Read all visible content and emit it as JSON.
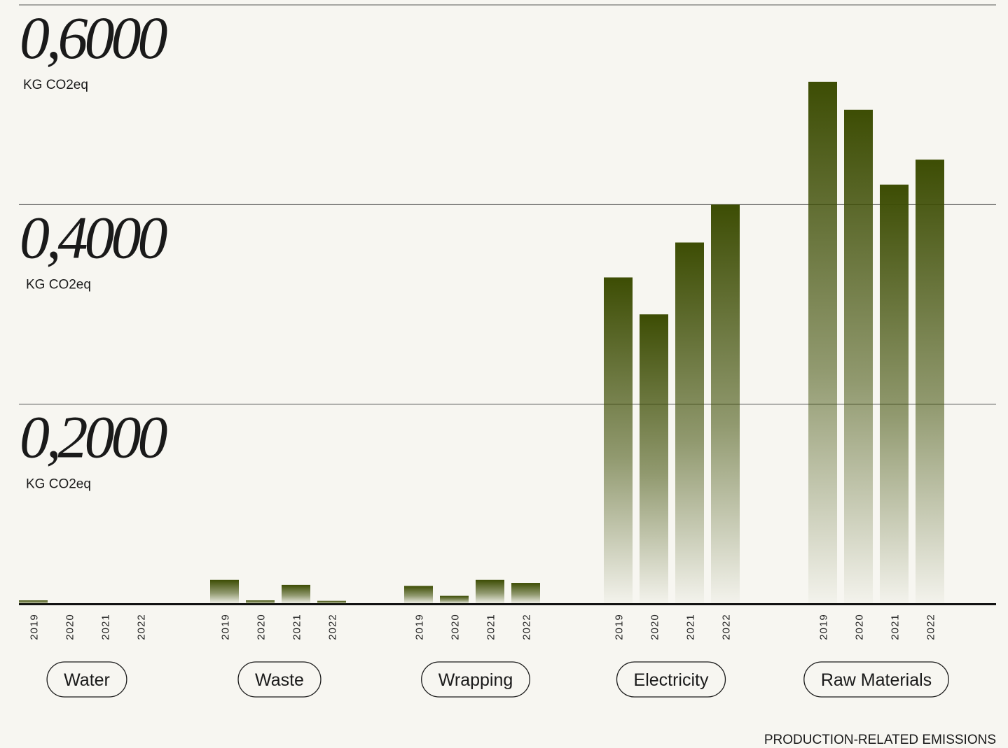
{
  "chart_data": {
    "type": "bar",
    "title": "PRODUCTION-RELATED EMISSIONS",
    "unit": "KG CO2eq",
    "categories": [
      "2019",
      "2020",
      "2021",
      "2022"
    ],
    "series": [
      {
        "name": "Water",
        "color": "#3d4d04",
        "values": [
          0.0035,
          0,
          0,
          0
        ]
      },
      {
        "name": "Waste",
        "color": "#3d4d04",
        "values": [
          0.024,
          0.0035,
          0.019,
          0.003
        ]
      },
      {
        "name": "Wrapping",
        "color": "#3d4d04",
        "values": [
          0.018,
          0.008,
          0.024,
          0.021
        ]
      },
      {
        "name": "Electricity",
        "color": "#3d4d04",
        "values": [
          0.327,
          0.29,
          0.362,
          0.4
        ]
      },
      {
        "name": "Raw Materials",
        "color": "#3d4d04",
        "values": [
          0.523,
          0.495,
          0.42,
          0.445
        ]
      }
    ],
    "ylim": [
      0,
      0.6
    ],
    "yticks": [
      {
        "value": 0.2,
        "label": "0,2000"
      },
      {
        "value": 0.4,
        "label": "0,4000"
      },
      {
        "value": 0.6,
        "label": "0,6000"
      }
    ],
    "grid": true
  }
}
